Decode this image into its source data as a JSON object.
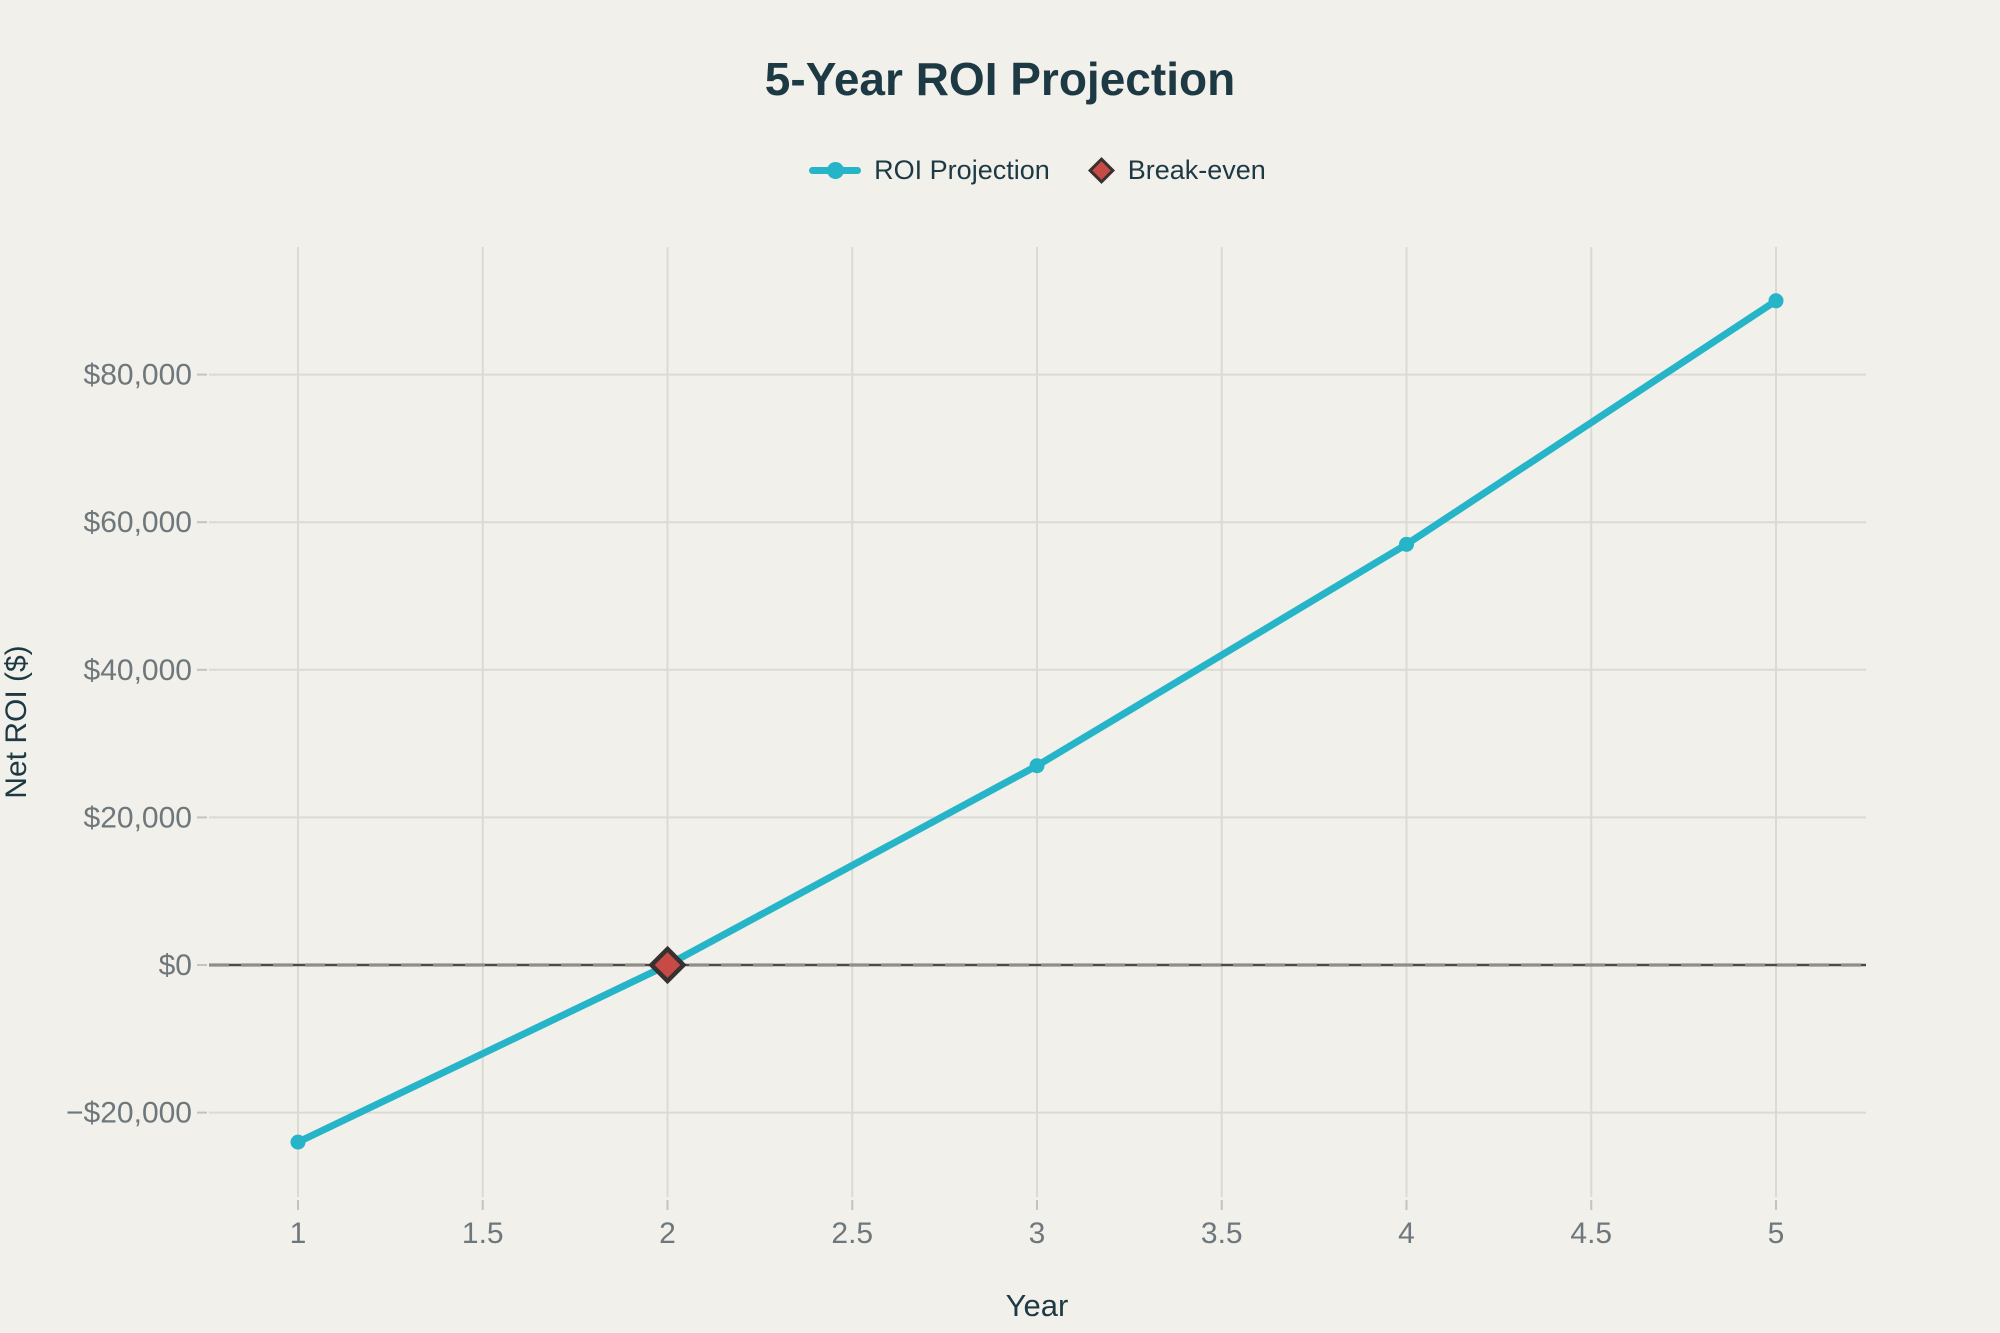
{
  "page": {
    "background": "#f1f0ea"
  },
  "chart": {
    "title": "5-Year ROI Projection",
    "x_axis_title": "Year",
    "y_axis_title": "Net ROI ($)"
  },
  "legend": {
    "items": [
      {
        "label": "ROI Projection",
        "swatch": "line-with-dot",
        "color": "#25b4c8"
      },
      {
        "label": "Break-even",
        "swatch": "diamond",
        "fill": "#c84a47",
        "stroke": "#37322f"
      }
    ]
  },
  "chart_data": {
    "type": "line",
    "title": "5-Year ROI Projection",
    "xlabel": "Year",
    "ylabel": "Net ROI ($)",
    "x": [
      1,
      2,
      3,
      4,
      5
    ],
    "series": [
      {
        "name": "ROI Projection",
        "values": [
          -24000,
          0,
          27000,
          57000,
          90000
        ],
        "color": "#25b4c8"
      }
    ],
    "annotations": [
      {
        "name": "Break-even",
        "type": "diamond-marker",
        "x": 2,
        "y": 0,
        "fill": "#c84a47",
        "stroke": "#37322f"
      },
      {
        "name": "break-even-zero-line",
        "type": "horizontal-line",
        "y": 0,
        "solid_color": "#4c4b49",
        "dash_color": "#8f8e87",
        "style": "solid-with-dashes"
      }
    ],
    "x_ticks": {
      "values": [
        1,
        1.5,
        2,
        2.5,
        3,
        3.5,
        4,
        4.5,
        5
      ],
      "labels": [
        "1",
        "1.5",
        "2",
        "2.5",
        "3",
        "3.5",
        "4",
        "4.5",
        "5"
      ]
    },
    "y_ticks": {
      "values": [
        -20000,
        0,
        20000,
        40000,
        60000,
        80000
      ],
      "labels": [
        "−$20,000",
        "$0",
        "$20,000",
        "$40,000",
        "$60,000",
        "$80,000"
      ]
    },
    "xlim": [
      0.76,
      5.24
    ],
    "ylim": [
      -31400,
      97300
    ],
    "grid": true,
    "legend_position": "top-center",
    "colors": {
      "background": "#f1f0ea",
      "grid": "#dbdad3",
      "tick_mark": "#c5c3bb",
      "tick_text": "#6e777c",
      "heading_text": "#1d3a44"
    }
  }
}
